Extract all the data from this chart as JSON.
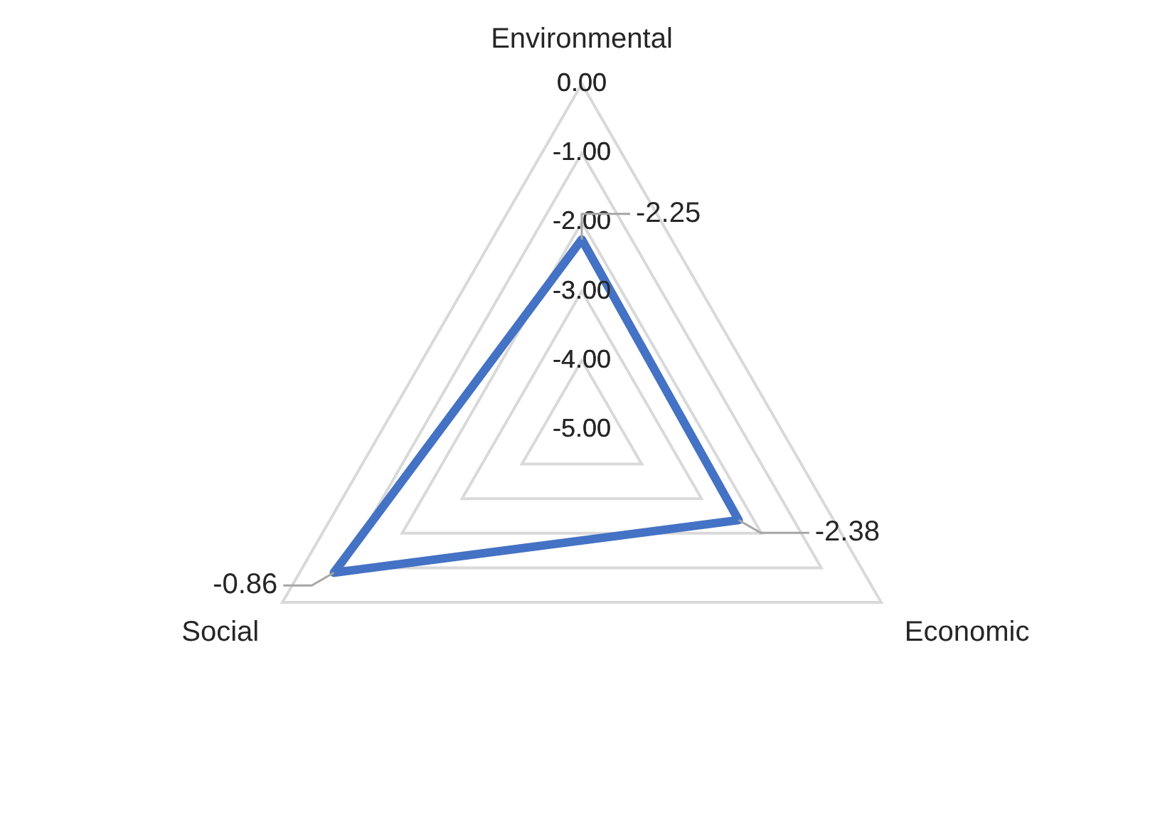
{
  "chart_data": {
    "type": "radar",
    "categories": [
      "Environmental",
      "Economic",
      "Social"
    ],
    "series": [
      {
        "color": "#4472c4",
        "values": [
          -2.25,
          -2.38,
          -0.86
        ]
      }
    ],
    "ylim": [
      -5,
      0
    ],
    "yticks": [
      {
        "value": -5,
        "label": "-5.00"
      },
      {
        "value": -4,
        "label": "-4.00"
      },
      {
        "value": -3,
        "label": "-3.00"
      },
      {
        "value": -2,
        "label": "-2.00"
      },
      {
        "value": -1,
        "label": "-1.00"
      },
      {
        "value": 0,
        "label": "0.00"
      }
    ],
    "grid": true,
    "legend": false,
    "marker": "none",
    "line_style": "solid",
    "data_labels": true
  }
}
